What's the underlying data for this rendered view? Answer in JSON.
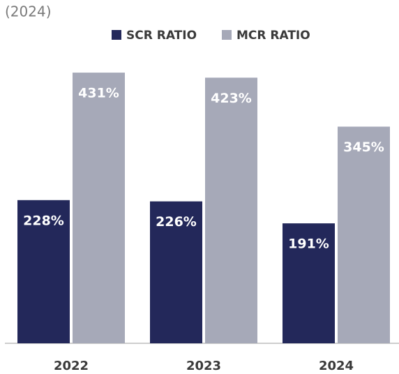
{
  "chart_data": {
    "type": "bar",
    "title": "(2024)",
    "categories": [
      "2022",
      "2023",
      "2024"
    ],
    "series": [
      {
        "name": "SCR RATIO",
        "color": "#23285a",
        "values": [
          228,
          226,
          191
        ],
        "value_labels": [
          "228%",
          "226%",
          "191%"
        ]
      },
      {
        "name": "MCR RATIO",
        "color": "#a6a9b8",
        "values": [
          431,
          423,
          345
        ],
        "value_labels": [
          "431%",
          "423%",
          "345%"
        ]
      }
    ]
  }
}
